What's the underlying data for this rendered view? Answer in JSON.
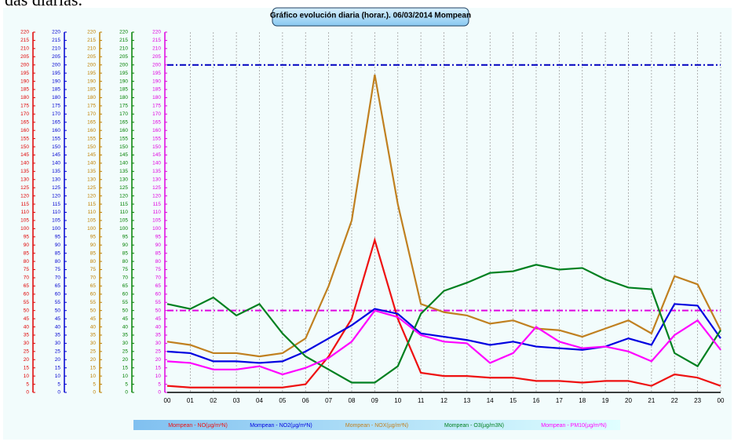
{
  "header_text": "das diarias.",
  "chart_data": {
    "type": "line",
    "title": "Gráfico evolución diaria (horar.). 06/03/2014 Mompean",
    "categories": [
      "00",
      "01",
      "02",
      "03",
      "04",
      "05",
      "06",
      "07",
      "08",
      "09",
      "10",
      "11",
      "12",
      "13",
      "14",
      "15",
      "16",
      "17",
      "18",
      "19",
      "20",
      "21",
      "22",
      "23",
      "00"
    ],
    "ylim": [
      0,
      220
    ],
    "yticks": [
      0,
      5,
      10,
      15,
      20,
      25,
      30,
      35,
      40,
      45,
      50,
      55,
      60,
      65,
      70,
      75,
      80,
      85,
      90,
      95,
      100,
      105,
      110,
      115,
      120,
      125,
      130,
      135,
      140,
      145,
      150,
      155,
      160,
      165,
      170,
      175,
      180,
      185,
      190,
      195,
      200,
      205,
      210,
      215,
      220
    ],
    "axis_colors": [
      "#e00000",
      "#0000d0",
      "#c08000",
      "#008000",
      "#e000e0"
    ],
    "grid": true,
    "reference_lines": [
      {
        "value": 200,
        "color": "#0000c0"
      },
      {
        "value": 50,
        "color": "#e000e0"
      }
    ],
    "series": [
      {
        "name": "Mompean - NO(µg/m³N)",
        "color": "#ee1111",
        "values": [
          4,
          3,
          3,
          3,
          3,
          3,
          5,
          22,
          45,
          93,
          45,
          12,
          10,
          10,
          9,
          9,
          7,
          7,
          6,
          7,
          7,
          4,
          11,
          9,
          4
        ]
      },
      {
        "name": "Mompean - NO2(µg/m³N)",
        "color": "#0000e0",
        "values": [
          25,
          24,
          19,
          19,
          18,
          19,
          25,
          33,
          41,
          51,
          48,
          36,
          34,
          32,
          29,
          31,
          28,
          27,
          26,
          28,
          33,
          29,
          54,
          53,
          33
        ]
      },
      {
        "name": "Mompean - NOX(µg/m³N)",
        "color": "#c08020",
        "values": [
          31,
          29,
          24,
          24,
          22,
          24,
          33,
          65,
          105,
          194,
          115,
          54,
          49,
          47,
          42,
          44,
          39,
          38,
          34,
          39,
          44,
          36,
          71,
          66,
          38
        ]
      },
      {
        "name": "Mompean - O3(µg/m3N)",
        "color": "#008020",
        "values": [
          54,
          51,
          58,
          47,
          54,
          36,
          22,
          14,
          6,
          6,
          16,
          48,
          62,
          67,
          73,
          74,
          78,
          75,
          76,
          69,
          64,
          63,
          24,
          16,
          38
        ]
      },
      {
        "name": "Mompean - PM10(µg/m³N)",
        "color": "#ff00ff",
        "values": [
          19,
          18,
          14,
          14,
          16,
          11,
          15,
          21,
          31,
          50,
          46,
          35,
          31,
          30,
          18,
          24,
          40,
          31,
          27,
          28,
          25,
          19,
          35,
          44,
          26
        ]
      }
    ]
  }
}
